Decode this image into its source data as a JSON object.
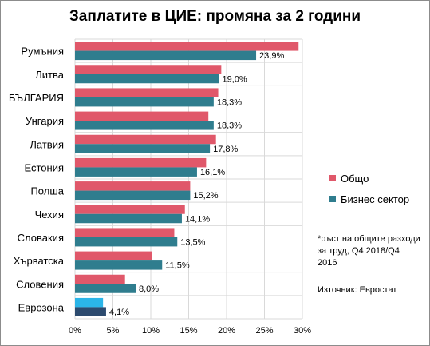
{
  "chart_data": {
    "type": "bar",
    "orientation": "horizontal",
    "title": "Заплатите в ЦИЕ: промяна за 2 години",
    "categories": [
      "Румъния",
      "Литва",
      "БЪЛГАРИЯ",
      "Унгария",
      "Латвия",
      "Естония",
      "Полша",
      "Чехия",
      "Словакия",
      "Хърватска",
      "Словения",
      "Еврозона"
    ],
    "series": [
      {
        "name": "Общо",
        "color": "#e0586a",
        "values": [
          29.5,
          19.3,
          18.9,
          17.6,
          18.6,
          17.3,
          15.2,
          14.5,
          13.1,
          10.2,
          6.6,
          3.7
        ]
      },
      {
        "name": "Бизнес сектор",
        "color": "#2f7d8e",
        "values": [
          23.9,
          19.0,
          18.3,
          18.3,
          17.8,
          16.1,
          15.2,
          14.1,
          13.5,
          11.5,
          8.0,
          4.1
        ],
        "data_labels": [
          "23,9%",
          "19,0%",
          "18,3%",
          "18,3%",
          "17,8%",
          "16,1%",
          "15,2%",
          "14,1%",
          "13,5%",
          "11,5%",
          "8,0%",
          "4,1%"
        ]
      }
    ],
    "highlight": {
      "category": "Еврозона",
      "colors": [
        "#2bb5e8",
        "#2c4a6e"
      ]
    },
    "xlim": [
      0,
      30
    ],
    "xticks": [
      0,
      5,
      10,
      15,
      20,
      25,
      30
    ],
    "xtick_labels": [
      "0%",
      "5%",
      "10%",
      "15%",
      "20%",
      "25%",
      "30%"
    ],
    "grid": true,
    "legend_position": "right",
    "note": "*ръст на общите разходи за труд, Q4 2018/Q4 2016",
    "source": "Източник:  Евростат"
  }
}
